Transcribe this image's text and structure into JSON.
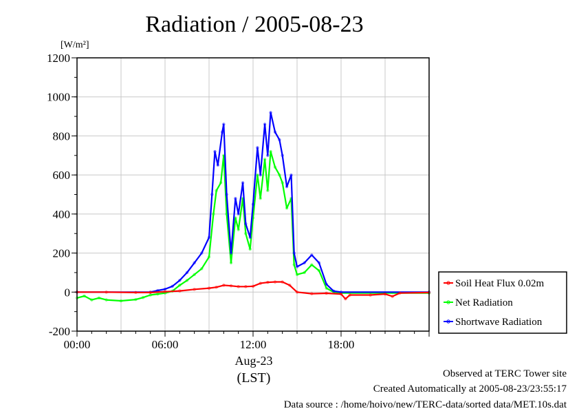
{
  "chart_data": {
    "type": "line",
    "title": "Radiation / 2005-08-23",
    "ylabel_unit": "[W/m²]",
    "xlabel_date": "Aug-23",
    "xlabel_zone": "(LST)",
    "ylim": [
      -200,
      1200
    ],
    "yticks": [
      "1200",
      "1000",
      "800",
      "600",
      "400",
      "200",
      "0",
      "-200"
    ],
    "ytick_values": [
      1200,
      1000,
      800,
      600,
      400,
      200,
      0,
      -200
    ],
    "xlim_hours": [
      0,
      24
    ],
    "xticks": [
      "00:00",
      "06:00",
      "12:00",
      "18:00"
    ],
    "xtick_hours": [
      0,
      6,
      12,
      18
    ],
    "grid": true,
    "legend_position": "right",
    "series": [
      {
        "name": "Soil Heat Flux 0.02m",
        "color": "#ff0000",
        "points": [
          [
            0,
            0
          ],
          [
            2,
            0
          ],
          [
            4,
            -2
          ],
          [
            5,
            -2
          ],
          [
            6,
            2
          ],
          [
            7,
            6
          ],
          [
            8,
            14
          ],
          [
            9,
            20
          ],
          [
            9.5,
            25
          ],
          [
            10,
            35
          ],
          [
            10.5,
            32
          ],
          [
            11,
            28
          ],
          [
            11.5,
            28
          ],
          [
            12,
            30
          ],
          [
            12.5,
            45
          ],
          [
            13,
            50
          ],
          [
            13.5,
            52
          ],
          [
            14,
            52
          ],
          [
            14.5,
            35
          ],
          [
            15,
            0
          ],
          [
            16,
            -8
          ],
          [
            17,
            -6
          ],
          [
            18,
            -10
          ],
          [
            18.3,
            -35
          ],
          [
            18.6,
            -15
          ],
          [
            20,
            -15
          ],
          [
            21,
            -10
          ],
          [
            21.5,
            -22
          ],
          [
            22,
            -5
          ],
          [
            24,
            -2
          ]
        ]
      },
      {
        "name": "Net Radiation",
        "color": "#00ff00",
        "points": [
          [
            0,
            -30
          ],
          [
            0.5,
            -20
          ],
          [
            1,
            -40
          ],
          [
            1.5,
            -30
          ],
          [
            2,
            -40
          ],
          [
            3,
            -45
          ],
          [
            4,
            -38
          ],
          [
            4.5,
            -28
          ],
          [
            5,
            -15
          ],
          [
            5.5,
            -10
          ],
          [
            6,
            -5
          ],
          [
            6.5,
            5
          ],
          [
            7,
            35
          ],
          [
            7.5,
            60
          ],
          [
            8,
            90
          ],
          [
            8.5,
            120
          ],
          [
            9,
            180
          ],
          [
            9.3,
            400
          ],
          [
            9.5,
            520
          ],
          [
            9.8,
            560
          ],
          [
            10,
            700
          ],
          [
            10.2,
            400
          ],
          [
            10.5,
            150
          ],
          [
            10.8,
            380
          ],
          [
            11,
            320
          ],
          [
            11.3,
            480
          ],
          [
            11.5,
            300
          ],
          [
            11.8,
            220
          ],
          [
            12,
            380
          ],
          [
            12.3,
            600
          ],
          [
            12.5,
            480
          ],
          [
            12.8,
            680
          ],
          [
            13,
            520
          ],
          [
            13.2,
            720
          ],
          [
            13.5,
            640
          ],
          [
            13.8,
            600
          ],
          [
            14,
            560
          ],
          [
            14.3,
            430
          ],
          [
            14.6,
            480
          ],
          [
            14.8,
            140
          ],
          [
            15,
            90
          ],
          [
            15.5,
            100
          ],
          [
            16,
            140
          ],
          [
            16.5,
            110
          ],
          [
            17,
            20
          ],
          [
            17.5,
            0
          ],
          [
            18,
            -5
          ],
          [
            24,
            -5
          ]
        ]
      },
      {
        "name": "Shortwave Radiation",
        "color": "#0000ff",
        "points": [
          [
            0,
            0
          ],
          [
            5,
            0
          ],
          [
            5.5,
            8
          ],
          [
            6,
            15
          ],
          [
            6.5,
            30
          ],
          [
            7,
            60
          ],
          [
            7.5,
            100
          ],
          [
            8,
            150
          ],
          [
            8.5,
            200
          ],
          [
            9,
            280
          ],
          [
            9.2,
            500
          ],
          [
            9.4,
            720
          ],
          [
            9.6,
            650
          ],
          [
            9.9,
            820
          ],
          [
            10,
            860
          ],
          [
            10.2,
            500
          ],
          [
            10.5,
            200
          ],
          [
            10.8,
            480
          ],
          [
            11,
            400
          ],
          [
            11.3,
            560
          ],
          [
            11.5,
            350
          ],
          [
            11.8,
            280
          ],
          [
            12,
            450
          ],
          [
            12.3,
            740
          ],
          [
            12.5,
            600
          ],
          [
            12.8,
            860
          ],
          [
            13,
            700
          ],
          [
            13.2,
            920
          ],
          [
            13.5,
            820
          ],
          [
            13.8,
            780
          ],
          [
            14,
            700
          ],
          [
            14.3,
            540
          ],
          [
            14.6,
            600
          ],
          [
            14.8,
            200
          ],
          [
            15,
            130
          ],
          [
            15.5,
            150
          ],
          [
            16,
            190
          ],
          [
            16.5,
            150
          ],
          [
            17,
            40
          ],
          [
            17.5,
            5
          ],
          [
            18,
            0
          ],
          [
            24,
            0
          ]
        ]
      }
    ]
  },
  "legend": {
    "items": [
      {
        "label": "Soil Heat Flux 0.02m",
        "color": "#ff0000"
      },
      {
        "label": "Net Radiation",
        "color": "#00ff00"
      },
      {
        "label": "Shortwave Radiation",
        "color": "#0000ff"
      }
    ]
  },
  "footer": {
    "observed": "Observed at TERC Tower site",
    "created": "Created Automatically at 2005-08-23/23:55:17",
    "source": "Data source : /home/hoivo/new/TERC-data/sorted data/MET.10s.dat"
  }
}
